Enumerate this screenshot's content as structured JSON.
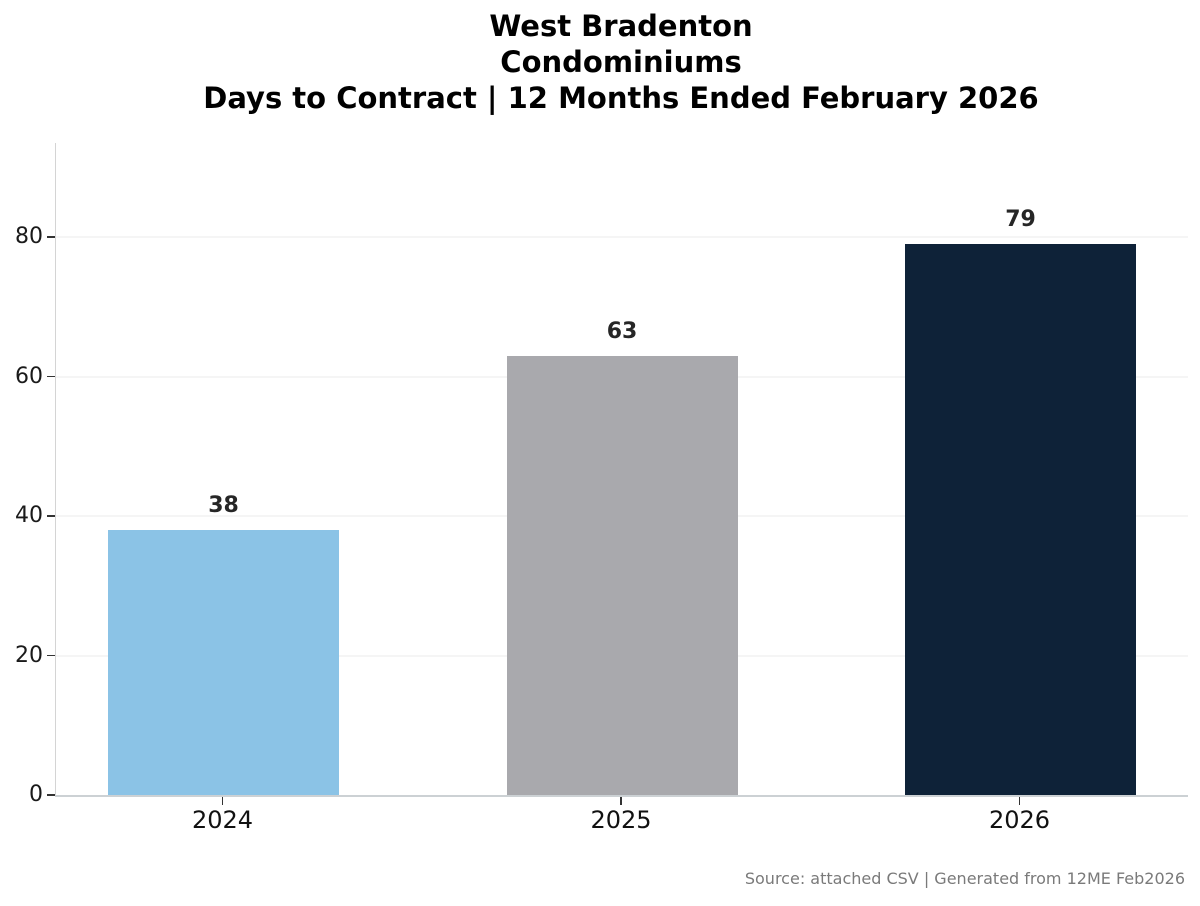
{
  "title": {
    "line1": "West Bradenton",
    "line2": "Condominiums",
    "line3": "Days to Contract | 12 Months Ended February 2026"
  },
  "source_note": "Source: attached CSV | Generated from 12ME Feb2026",
  "chart_data": {
    "type": "bar",
    "title": "West Bradenton\nCondominiums\nDays to Contract | 12 Months Ended February 2026",
    "categories": [
      "2024",
      "2025",
      "2026"
    ],
    "values": [
      38,
      63,
      79
    ],
    "value_labels": [
      "38",
      "63",
      "79"
    ],
    "bar_colors": [
      "#8bc3e6",
      "#a9a9ad",
      "#0e2238"
    ],
    "xlabel": "",
    "ylabel": "",
    "ylim": [
      0,
      93.5
    ],
    "yticks": [
      0,
      20,
      40,
      60,
      80
    ],
    "grid": true,
    "legend": false,
    "value_labels_shown": true
  },
  "colors": {
    "background": "#ffffff",
    "gridline": "#f5f5f5",
    "spine": "#d4d4d4",
    "tick": "#333333",
    "title_text": "#000000",
    "axis_label_text": "#111111",
    "value_label_text": "#262626",
    "source_text": "#7a7a7a"
  }
}
